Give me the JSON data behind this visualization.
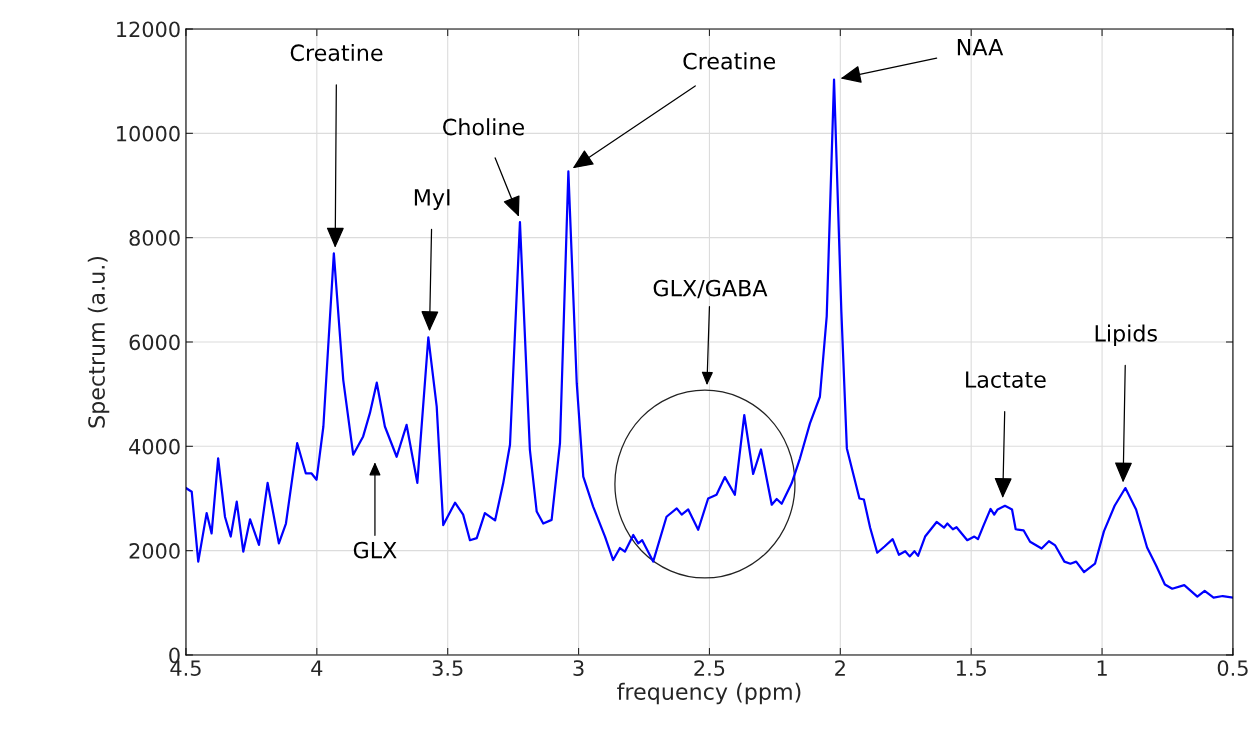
{
  "chart_data": {
    "type": "line",
    "xlabel": "frequency (ppm)",
    "ylabel": "Spectrum (a.u.)",
    "xlim": [
      4.5,
      0.5
    ],
    "xticks": [
      4.5,
      4,
      3.5,
      3,
      2.5,
      2,
      1.5,
      1,
      0.5
    ],
    "ylim": [
      0,
      12000
    ],
    "yticks": [
      0,
      2000,
      4000,
      6000,
      8000,
      10000,
      12000
    ],
    "grid": true,
    "marker": "none",
    "line_style": "solid",
    "series": [
      {
        "color": "#0000ff",
        "x": [
          4.5,
          4.478,
          4.453,
          4.421,
          4.402,
          4.377,
          4.351,
          4.329,
          4.306,
          4.281,
          4.255,
          4.221,
          4.188,
          4.145,
          4.118,
          4.075,
          4.042,
          4.02,
          4.001,
          3.975,
          3.935,
          3.899,
          3.861,
          3.823,
          3.797,
          3.771,
          3.74,
          3.695,
          3.657,
          3.616,
          3.574,
          3.542,
          3.517,
          3.472,
          3.441,
          3.415,
          3.389,
          3.358,
          3.319,
          3.288,
          3.262,
          3.224,
          3.186,
          3.16,
          3.135,
          3.103,
          3.071,
          3.039,
          3.007,
          2.982,
          2.944,
          2.899,
          2.868,
          2.842,
          2.823,
          2.791,
          2.772,
          2.757,
          2.715,
          2.664,
          2.625,
          2.606,
          2.581,
          2.543,
          2.505,
          2.473,
          2.441,
          2.403,
          2.367,
          2.333,
          2.303,
          2.262,
          2.243,
          2.224,
          2.186,
          2.154,
          2.116,
          2.078,
          2.052,
          2.024,
          1.996,
          1.975,
          1.927,
          1.91,
          1.886,
          1.859,
          1.831,
          1.8,
          1.776,
          1.752,
          1.735,
          1.717,
          1.703,
          1.676,
          1.632,
          1.604,
          1.591,
          1.57,
          1.556,
          1.515,
          1.488,
          1.474,
          1.453,
          1.426,
          1.412,
          1.399,
          1.371,
          1.344,
          1.33,
          1.3,
          1.275,
          1.231,
          1.203,
          1.179,
          1.144,
          1.121,
          1.099,
          1.069,
          1.027,
          0.993,
          0.952,
          0.911,
          0.87,
          0.828,
          0.794,
          0.76,
          0.732,
          0.686,
          0.636,
          0.608,
          0.574,
          0.539,
          0.5
        ],
        "values": [
          3200,
          3130,
          1790,
          2720,
          2330,
          3770,
          2650,
          2270,
          2940,
          1980,
          2600,
          2110,
          3300,
          2140,
          2520,
          4060,
          3480,
          3480,
          3360,
          4380,
          7700,
          5270,
          3840,
          4190,
          4640,
          5220,
          4380,
          3800,
          4410,
          3300,
          6090,
          4760,
          2490,
          2920,
          2690,
          2200,
          2240,
          2720,
          2580,
          3290,
          4030,
          8300,
          3930,
          2750,
          2520,
          2590,
          4060,
          9270,
          5210,
          3420,
          2840,
          2270,
          1820,
          2050,
          1980,
          2300,
          2140,
          2200,
          1790,
          2650,
          2810,
          2690,
          2790,
          2400,
          3000,
          3070,
          3410,
          3070,
          4600,
          3470,
          3940,
          2880,
          2990,
          2900,
          3290,
          3770,
          4440,
          4950,
          6490,
          11030,
          6580,
          3960,
          3000,
          2980,
          2440,
          1960,
          2080,
          2220,
          1920,
          1990,
          1890,
          1990,
          1900,
          2270,
          2550,
          2440,
          2520,
          2410,
          2450,
          2200,
          2270,
          2220,
          2480,
          2800,
          2690,
          2790,
          2860,
          2790,
          2410,
          2390,
          2170,
          2040,
          2180,
          2100,
          1790,
          1750,
          1790,
          1590,
          1750,
          2370,
          2860,
          3200,
          2790,
          2060,
          1720,
          1350,
          1270,
          1340,
          1120,
          1230,
          1100,
          1130,
          1100
        ]
      }
    ],
    "annotations": [
      {
        "text": "Creatine",
        "x": 3.93,
        "y": 7700
      },
      {
        "text": "MyI",
        "x": 3.57,
        "y": 6100
      },
      {
        "text": "Choline",
        "x": 3.22,
        "y": 8300
      },
      {
        "text": "Creatine",
        "x": 3.04,
        "y": 9270
      },
      {
        "text": "NAA",
        "x": 2.02,
        "y": 11030
      },
      "GLX",
      "GLX/GABA",
      {
        "text": "Lactate",
        "x": 1.38,
        "y": 2900
      },
      {
        "text": "Lipids",
        "x": 0.92,
        "y": 3200
      }
    ]
  }
}
